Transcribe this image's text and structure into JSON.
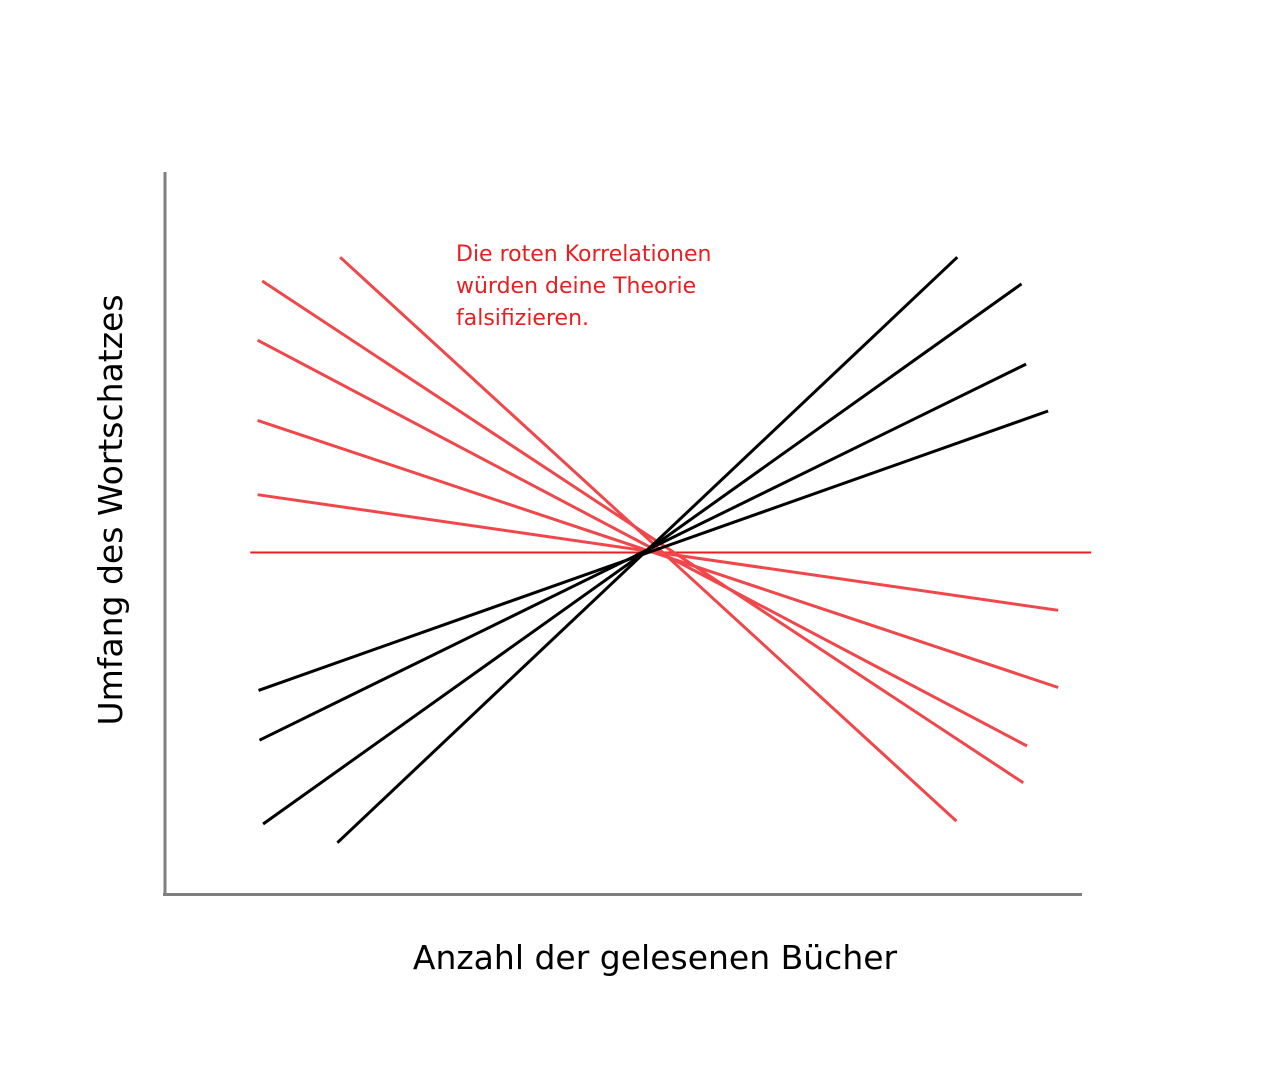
{
  "colors": {
    "positive": "#000000",
    "negative": "#f0474b",
    "baseline": "#e81e22",
    "axis": "#7f7f7f",
    "annotation": "#e81e22"
  },
  "chart_data": {
    "type": "line",
    "title": "",
    "xlabel": "Anzahl der gelesenen Bücher",
    "ylabel": "Umfang des Wortschatzes",
    "xlim": [
      0,
      100
    ],
    "ylim": [
      0,
      100
    ],
    "grid": false,
    "tick_labels": false,
    "annotation": {
      "lines": [
        "Die roten Korrelationen",
        "würden deine Theorie",
        "falsifizieren."
      ],
      "color": "#e81e22"
    },
    "series": [
      {
        "group": "positive",
        "x": [
          18.8,
          86.4
        ],
        "y": [
          7.1,
          88.2
        ]
      },
      {
        "group": "positive",
        "x": [
          10.7,
          93.4
        ],
        "y": [
          9.7,
          84.5
        ]
      },
      {
        "group": "positive",
        "x": [
          10.3,
          93.9
        ],
        "y": [
          21.3,
          73.4
        ]
      },
      {
        "group": "positive",
        "x": [
          10.2,
          96.3
        ],
        "y": [
          28.2,
          66.9
        ]
      },
      {
        "group": "negative",
        "x": [
          19.1,
          86.3
        ],
        "y": [
          88.2,
          10.1
        ]
      },
      {
        "group": "negative",
        "x": [
          10.6,
          93.6
        ],
        "y": [
          84.9,
          15.4
        ]
      },
      {
        "group": "negative",
        "x": [
          10.1,
          94.0
        ],
        "y": [
          76.7,
          20.5
        ]
      },
      {
        "group": "negative",
        "x": [
          10.1,
          97.4
        ],
        "y": [
          55.3,
          39.3
        ]
      },
      {
        "group": "negative",
        "x": [
          10.1,
          97.4
        ],
        "y": [
          65.6,
          28.6
        ]
      },
      {
        "group": "baseline",
        "x": [
          9.3,
          101.0
        ],
        "y": [
          47.3,
          47.3
        ]
      }
    ]
  }
}
